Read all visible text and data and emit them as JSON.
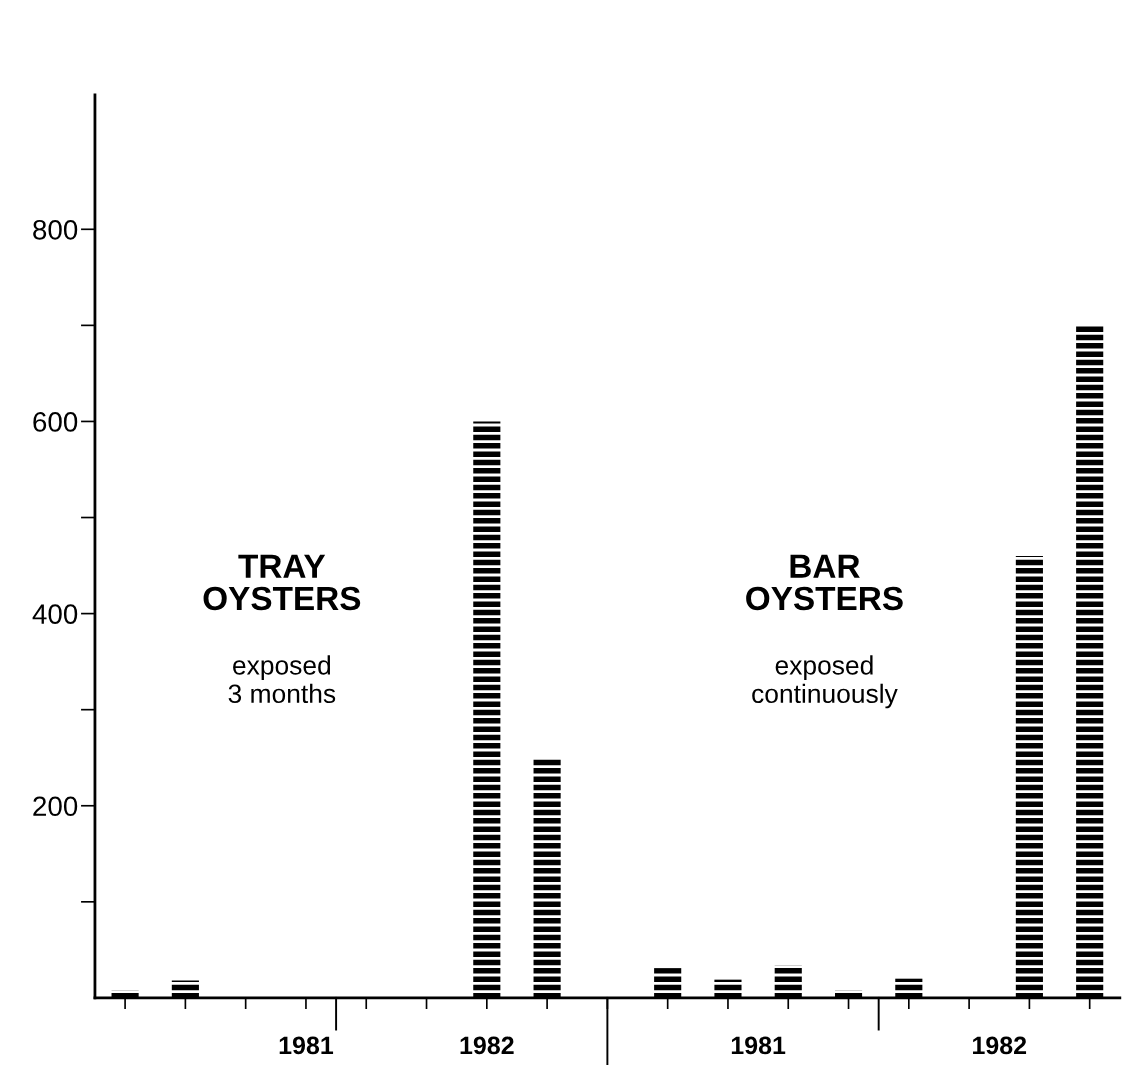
{
  "chart_data": {
    "type": "bar",
    "categories": [
      null,
      null,
      null,
      null,
      null,
      null,
      null,
      null,
      null,
      null,
      null,
      null,
      null,
      null,
      null,
      null,
      null
    ],
    "series": [
      {
        "color": "#000000",
        "values": [
          8,
          18,
          null,
          null,
          null,
          null,
          600,
          250,
          null,
          31,
          19,
          34,
          8,
          20,
          null,
          460,
          700
        ]
      }
    ],
    "ylim": [
      0,
      940
    ],
    "yticks": [
      {
        "value": 100,
        "label": null
      },
      200,
      {
        "value": 300,
        "label": null
      },
      400,
      {
        "value": 500,
        "label": null
      },
      600,
      {
        "value": 700,
        "label": null
      },
      800
    ],
    "annotations": [
      "TRAY\nOYSTERS",
      "exposed\n3 months",
      "BAR\nOYSTERS",
      "exposed\ncontinuously",
      "1981",
      "1982",
      "1981",
      "1982"
    ],
    "grid": false
  }
}
